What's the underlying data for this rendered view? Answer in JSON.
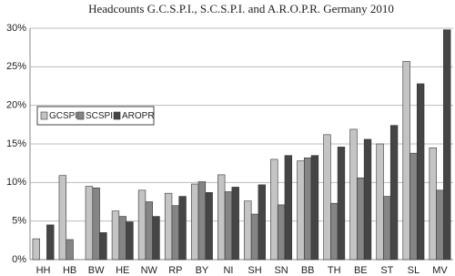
{
  "chart_data": {
    "type": "bar",
    "title": "Headcounts  G.C.S.P.I., S.C.S.P.I. and A.R.O.P.R. Germany 2010",
    "categories": [
      "HH",
      "HB",
      "BW",
      "HE",
      "NW",
      "RP",
      "BY",
      "NI",
      "SH",
      "SN",
      "BB",
      "TH",
      "BE",
      "ST",
      "SL",
      "MV"
    ],
    "series": [
      {
        "name": "GCSPI",
        "color": "#c4c4c4",
        "values": [
          2.7,
          10.9,
          9.5,
          6.3,
          9.0,
          8.6,
          9.8,
          11.0,
          7.6,
          13.0,
          12.8,
          16.2,
          16.9,
          15.0,
          25.7,
          14.5
        ]
      },
      {
        "name": "SCSPI",
        "color": "#858585",
        "values": [
          null,
          2.6,
          9.3,
          5.6,
          7.5,
          7.0,
          10.1,
          8.8,
          5.9,
          7.1,
          13.2,
          7.3,
          10.6,
          8.2,
          13.8,
          9.0
        ]
      },
      {
        "name": "AROPR",
        "color": "#454545",
        "values": [
          4.5,
          null,
          3.5,
          4.9,
          5.6,
          8.2,
          8.7,
          9.4,
          9.7,
          13.5,
          13.5,
          14.6,
          15.6,
          17.4,
          22.8,
          29.8
        ]
      }
    ],
    "ylim": [
      0,
      30
    ],
    "yticks": [
      {
        "value": 0,
        "label": "0%"
      },
      {
        "value": 5,
        "label": "5%"
      },
      {
        "value": 10,
        "label": "10%"
      },
      {
        "value": 15,
        "label": "15%"
      },
      {
        "value": 20,
        "label": "20%"
      },
      {
        "value": 25,
        "label": "25%"
      },
      {
        "value": 30,
        "label": "30%"
      }
    ],
    "grid": true,
    "legend": "center left"
  }
}
